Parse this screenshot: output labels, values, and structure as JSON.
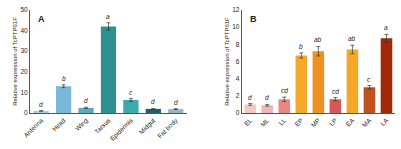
{
  "chart_data": [
    {
      "type": "bar",
      "title": "A",
      "categories": [
        "Antenna",
        "Head",
        "Wing",
        "Tarsus",
        "Epidermis",
        "Midgut",
        "Fat body"
      ],
      "values": [
        1.0,
        13.0,
        2.5,
        42.0,
        6.3,
        2.0,
        1.9
      ],
      "errors": [
        0.15,
        0.7,
        0.3,
        1.8,
        0.7,
        0.2,
        0.2
      ],
      "annotations": [
        "d",
        "b",
        "d",
        "a",
        "c",
        "d",
        "d"
      ],
      "colors": [
        "#a8cce0",
        "#7ab8d8",
        "#5baabf",
        "#2e9090",
        "#3aabab",
        "#1a6070",
        "#90b8c8"
      ],
      "ylabel": "Relative expression of TcPTP61F",
      "ylim": [
        0,
        50
      ],
      "yticks": [
        0,
        10,
        20,
        30,
        40,
        50
      ],
      "grid": false
    },
    {
      "type": "bar",
      "title": "B",
      "categories": [
        "EL",
        "ML",
        "LL",
        "EP",
        "MP",
        "LP",
        "EA",
        "MA",
        "LA"
      ],
      "values": [
        1.0,
        0.9,
        1.6,
        6.7,
        7.2,
        1.6,
        7.4,
        3.0,
        8.7
      ],
      "errors": [
        0.1,
        0.1,
        0.25,
        0.3,
        0.55,
        0.2,
        0.5,
        0.2,
        0.45
      ],
      "annotations": [
        "d",
        "d",
        "cd",
        "b",
        "ab",
        "cd",
        "ab",
        "c",
        "a"
      ],
      "colors": [
        "#f5c8c0",
        "#f0b8b0",
        "#e88880",
        "#f5a828",
        "#f09020",
        "#d85858",
        "#f5a828",
        "#c05020",
        "#a02808"
      ],
      "ylabel": "Relative expression of TcPTP61F",
      "ylim": [
        0,
        12
      ],
      "yticks": [
        0,
        2,
        4,
        6,
        8,
        10,
        12
      ],
      "grid": false
    }
  ]
}
